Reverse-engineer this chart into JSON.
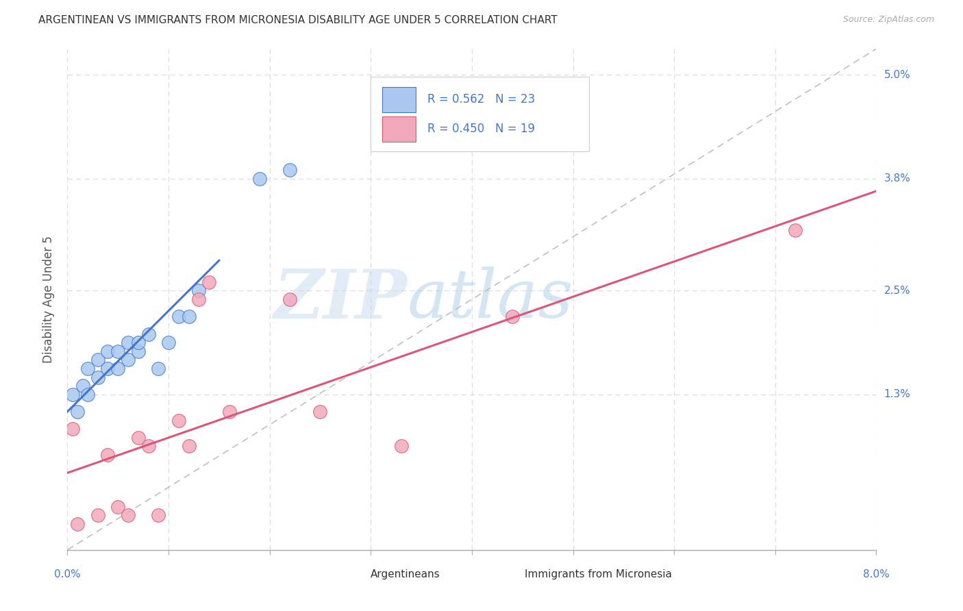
{
  "title": "ARGENTINEAN VS IMMIGRANTS FROM MICRONESIA DISABILITY AGE UNDER 5 CORRELATION CHART",
  "source": "Source: ZipAtlas.com",
  "ylabel": "Disability Age Under 5",
  "xlim": [
    0.0,
    0.08
  ],
  "ylim": [
    -0.005,
    0.053
  ],
  "ytick_positions": [
    0.013,
    0.025,
    0.038,
    0.05
  ],
  "ytick_labels": [
    "1.3%",
    "2.5%",
    "3.8%",
    "5.0%"
  ],
  "argentinean_R": 0.562,
  "argentinean_N": 23,
  "micronesia_R": 0.45,
  "micronesia_N": 19,
  "argentinean_color": "#aac8f0",
  "micronesia_color": "#f0aabb",
  "trend_argentinean_color": "#4477cc",
  "trend_micronesia_color": "#dd5577",
  "diagonal_color": "#c0c0c0",
  "background_color": "#ffffff",
  "grid_color": "#dddddd",
  "watermark_zip": "ZIP",
  "watermark_atlas": "atlas",
  "argentinean_x": [
    0.0005,
    0.001,
    0.0015,
    0.002,
    0.002,
    0.003,
    0.003,
    0.004,
    0.004,
    0.005,
    0.005,
    0.006,
    0.006,
    0.007,
    0.007,
    0.008,
    0.009,
    0.01,
    0.011,
    0.012,
    0.013,
    0.019,
    0.022
  ],
  "argentinean_y": [
    0.013,
    0.011,
    0.014,
    0.013,
    0.016,
    0.015,
    0.017,
    0.016,
    0.018,
    0.016,
    0.018,
    0.017,
    0.019,
    0.018,
    0.019,
    0.02,
    0.016,
    0.019,
    0.022,
    0.022,
    0.025,
    0.038,
    0.039
  ],
  "micronesia_x": [
    0.0005,
    0.001,
    0.003,
    0.004,
    0.005,
    0.006,
    0.007,
    0.008,
    0.009,
    0.011,
    0.012,
    0.013,
    0.014,
    0.016,
    0.022,
    0.025,
    0.033,
    0.044,
    0.072
  ],
  "micronesia_y": [
    0.009,
    -0.002,
    -0.001,
    0.006,
    0.0,
    -0.001,
    0.008,
    0.007,
    -0.001,
    0.01,
    0.007,
    0.024,
    0.026,
    0.011,
    0.024,
    0.011,
    0.007,
    0.022,
    0.032
  ],
  "argentinean_trend_x": [
    0.0,
    0.015
  ],
  "micronesia_trend_x": [
    0.0,
    0.08
  ]
}
